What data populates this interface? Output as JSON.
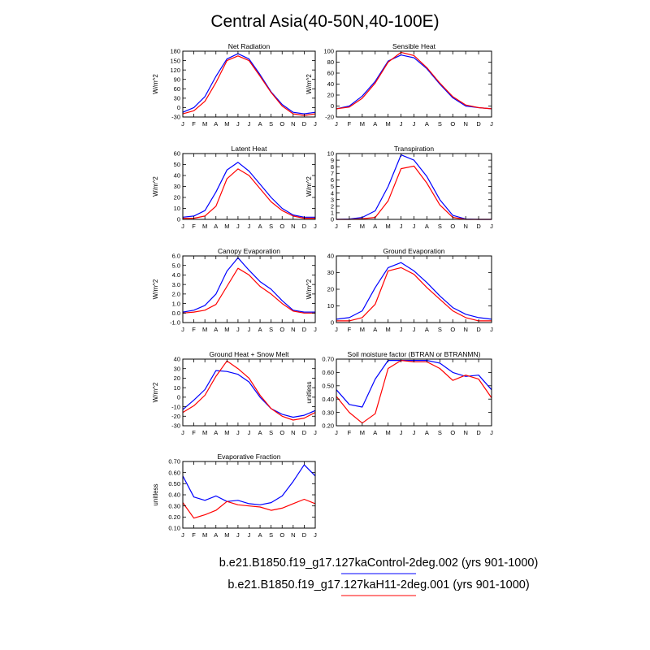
{
  "title": "Central Asia(40-50N,40-100E)",
  "colors": {
    "control": "#0000ff",
    "experiment": "#ff0000"
  },
  "legend": [
    {
      "label": "b.e21.B1850.f19_g17.127kaControl-2deg.002 (yrs 901-1000)",
      "color": "#0000ff"
    },
    {
      "label": "b.e21.B1850.f19_g17.127kaH11-2deg.001 (yrs 901-1000)",
      "color": "#ff0000"
    }
  ],
  "chart_data": [
    {
      "type": "line",
      "title": "Net Radiation",
      "ylabel": "W/m^2",
      "categories": [
        "J",
        "F",
        "M",
        "A",
        "M",
        "J",
        "J",
        "A",
        "S",
        "O",
        "N",
        "D",
        "J"
      ],
      "ylim": [
        -30,
        180
      ],
      "yticks": [
        "180",
        "150",
        "120",
        "90",
        "60",
        "30",
        "0",
        "-30"
      ],
      "ytick_values": [
        180,
        150,
        120,
        90,
        60,
        30,
        0,
        -30
      ],
      "series": [
        {
          "values": [
            -15,
            0,
            35,
            100,
            155,
            172,
            155,
            105,
            50,
            10,
            -15,
            -20,
            -15
          ],
          "color": "#0000ff"
        },
        {
          "values": [
            -20,
            -10,
            20,
            80,
            150,
            165,
            150,
            100,
            48,
            5,
            -20,
            -25,
            -20
          ],
          "color": "#ff0000"
        }
      ]
    },
    {
      "type": "line",
      "title": "Sensible Heat",
      "ylabel": "W/m^2",
      "categories": [
        "J",
        "F",
        "M",
        "A",
        "M",
        "J",
        "J",
        "A",
        "S",
        "O",
        "N",
        "D",
        "J"
      ],
      "ylim": [
        -20,
        100
      ],
      "yticks": [
        "100",
        "80",
        "60",
        "40",
        "20",
        "0",
        "-20"
      ],
      "ytick_values": [
        100,
        80,
        60,
        40,
        20,
        0,
        -20
      ],
      "series": [
        {
          "values": [
            -5,
            0,
            18,
            45,
            82,
            93,
            88,
            68,
            40,
            15,
            0,
            -3,
            -5
          ],
          "color": "#0000ff"
        },
        {
          "values": [
            -5,
            -2,
            14,
            42,
            80,
            98,
            92,
            70,
            42,
            17,
            2,
            -3,
            -5
          ],
          "color": "#ff0000"
        }
      ]
    },
    {
      "type": "line",
      "title": "Latent Heat",
      "ylabel": "W/m^2",
      "categories": [
        "J",
        "F",
        "M",
        "A",
        "M",
        "J",
        "J",
        "A",
        "S",
        "O",
        "N",
        "D",
        "J"
      ],
      "ylim": [
        0,
        60
      ],
      "yticks": [
        "60",
        "50",
        "40",
        "30",
        "20",
        "10",
        "0"
      ],
      "ytick_values": [
        60,
        50,
        40,
        30,
        20,
        10,
        0
      ],
      "series": [
        {
          "values": [
            2,
            3,
            8,
            25,
            45,
            52,
            44,
            32,
            20,
            10,
            4,
            2,
            2
          ],
          "color": "#0000ff"
        },
        {
          "values": [
            1,
            1,
            3,
            12,
            37,
            46,
            40,
            28,
            16,
            8,
            3,
            1,
            1
          ],
          "color": "#ff0000"
        }
      ]
    },
    {
      "type": "line",
      "title": "Transpiration",
      "ylabel": "W/m^2",
      "categories": [
        "J",
        "F",
        "M",
        "A",
        "M",
        "J",
        "J",
        "A",
        "S",
        "O",
        "N",
        "D",
        "J"
      ],
      "ylim": [
        0,
        10
      ],
      "yticks": [
        "10",
        "9",
        "8",
        "7",
        "6",
        "5",
        "4",
        "3",
        "2",
        "1",
        "0"
      ],
      "ytick_values": [
        10,
        9,
        8,
        7,
        6,
        5,
        4,
        3,
        2,
        1,
        0
      ],
      "series": [
        {
          "values": [
            0,
            0.05,
            0.3,
            1.3,
            5,
            9.8,
            9.0,
            6.5,
            3.0,
            0.6,
            0.05,
            0,
            0
          ],
          "color": "#0000ff"
        },
        {
          "values": [
            0,
            0,
            0.1,
            0.3,
            2.8,
            7.7,
            8.1,
            5.5,
            2.2,
            0.3,
            0,
            0,
            0
          ],
          "color": "#ff0000"
        }
      ]
    },
    {
      "type": "line",
      "title": "Canopy Evaporation",
      "ylabel": "W/m^2",
      "categories": [
        "J",
        "F",
        "M",
        "A",
        "M",
        "J",
        "J",
        "A",
        "S",
        "O",
        "N",
        "D",
        "J"
      ],
      "ylim": [
        -1,
        6
      ],
      "yticks": [
        "6.0",
        "5.0",
        "4.0",
        "3.0",
        "2.0",
        "1.0",
        "0.0",
        "-1.0"
      ],
      "ytick_values": [
        6,
        5,
        4,
        3,
        2,
        1,
        0,
        -1
      ],
      "series": [
        {
          "values": [
            0.1,
            0.3,
            0.8,
            2.0,
            4.4,
            5.8,
            4.5,
            3.3,
            2.5,
            1.3,
            0.3,
            0.1,
            0.1
          ],
          "color": "#0000ff"
        },
        {
          "values": [
            0,
            0.1,
            0.3,
            0.9,
            2.8,
            4.7,
            4.0,
            2.8,
            2.0,
            1.0,
            0.2,
            0,
            0
          ],
          "color": "#ff0000"
        }
      ]
    },
    {
      "type": "line",
      "title": "Ground Evaporation",
      "ylabel": "W/m^2",
      "categories": [
        "J",
        "F",
        "M",
        "A",
        "M",
        "J",
        "J",
        "A",
        "S",
        "O",
        "N",
        "D",
        "J"
      ],
      "ylim": [
        0,
        40
      ],
      "yticks": [
        "40",
        "30",
        "20",
        "10",
        "0"
      ],
      "ytick_values": [
        40,
        30,
        20,
        10,
        0
      ],
      "series": [
        {
          "values": [
            2,
            3,
            7,
            21,
            33,
            36,
            31,
            24,
            16,
            9,
            5,
            3,
            2
          ],
          "color": "#0000ff"
        },
        {
          "values": [
            1,
            1,
            3,
            11,
            31,
            33,
            29,
            21,
            14,
            7,
            3,
            1,
            1
          ],
          "color": "#ff0000"
        }
      ]
    },
    {
      "type": "line",
      "title": "Ground Heat + Snow Melt",
      "ylabel": "W/m^2",
      "categories": [
        "J",
        "F",
        "M",
        "A",
        "M",
        "J",
        "J",
        "A",
        "S",
        "O",
        "N",
        "D",
        "J"
      ],
      "ylim": [
        -30,
        40
      ],
      "yticks": [
        "40",
        "30",
        "20",
        "10",
        "0",
        "-10",
        "-20",
        "-30"
      ],
      "ytick_values": [
        40,
        30,
        20,
        10,
        0,
        -10,
        -20,
        -30
      ],
      "series": [
        {
          "values": [
            -13,
            -3,
            8,
            28,
            27,
            24,
            16,
            0,
            -12,
            -18,
            -21,
            -19,
            -14
          ],
          "color": "#0000ff"
        },
        {
          "values": [
            -16,
            -9,
            2,
            22,
            38,
            30,
            20,
            2,
            -12,
            -20,
            -24,
            -22,
            -16
          ],
          "color": "#ff0000"
        }
      ]
    },
    {
      "type": "line",
      "title": "Soil moisture factor (BTRAN or BTRANMN)",
      "ylabel": "unitless",
      "categories": [
        "J",
        "F",
        "M",
        "A",
        "M",
        "J",
        "J",
        "A",
        "S",
        "O",
        "N",
        "D",
        "J"
      ],
      "ylim": [
        0.2,
        0.7
      ],
      "yticks": [
        "0.70",
        "0.60",
        "0.50",
        "0.40",
        "0.30",
        "0.20"
      ],
      "ytick_values": [
        0.7,
        0.6,
        0.5,
        0.4,
        0.3,
        0.2
      ],
      "series": [
        {
          "values": [
            0.47,
            0.36,
            0.34,
            0.55,
            0.69,
            0.69,
            0.69,
            0.69,
            0.67,
            0.6,
            0.57,
            0.58,
            0.47
          ],
          "color": "#0000ff"
        },
        {
          "values": [
            0.42,
            0.3,
            0.22,
            0.29,
            0.63,
            0.69,
            0.68,
            0.68,
            0.63,
            0.54,
            0.58,
            0.55,
            0.41
          ],
          "color": "#ff0000"
        }
      ]
    },
    {
      "type": "line",
      "title": "Evaporative Fraction",
      "ylabel": "unitless",
      "categories": [
        "J",
        "F",
        "M",
        "A",
        "M",
        "J",
        "J",
        "A",
        "S",
        "O",
        "N",
        "D",
        "J"
      ],
      "ylim": [
        0.1,
        0.7
      ],
      "yticks": [
        "0.70",
        "0.60",
        "0.50",
        "0.40",
        "0.30",
        "0.20",
        "0.10"
      ],
      "ytick_values": [
        0.7,
        0.6,
        0.5,
        0.4,
        0.3,
        0.2,
        0.1
      ],
      "series": [
        {
          "values": [
            0.57,
            0.38,
            0.35,
            0.39,
            0.34,
            0.35,
            0.32,
            0.31,
            0.33,
            0.39,
            0.52,
            0.67,
            0.57
          ],
          "color": "#0000ff"
        },
        {
          "values": [
            0.33,
            0.19,
            0.22,
            0.26,
            0.34,
            0.31,
            0.3,
            0.29,
            0.26,
            0.28,
            0.32,
            0.36,
            0.32
          ],
          "color": "#ff0000"
        }
      ]
    }
  ]
}
